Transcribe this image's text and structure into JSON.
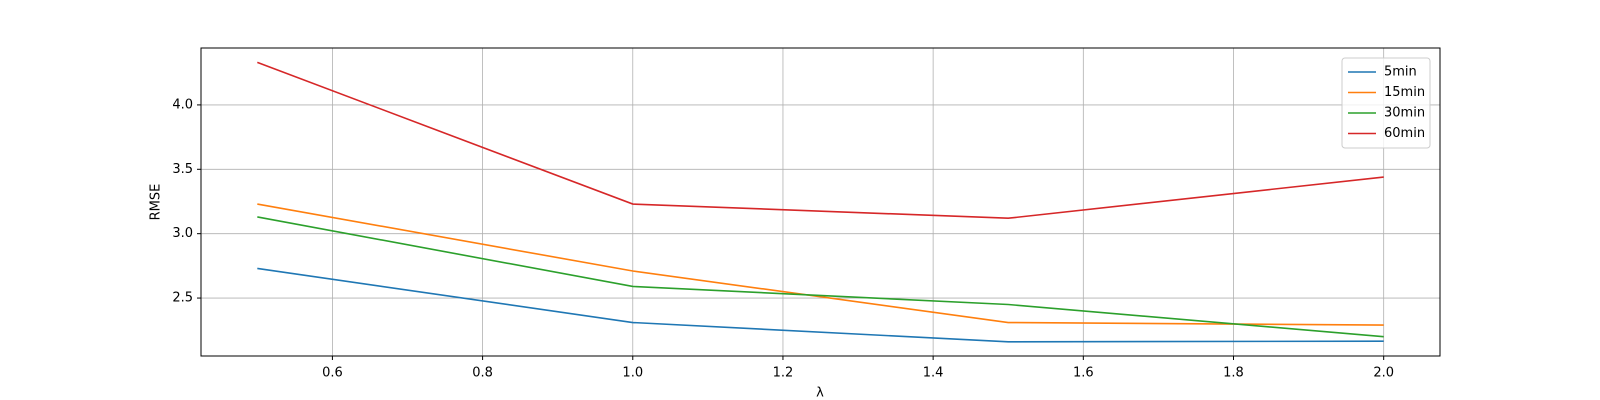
{
  "chart_data": {
    "type": "line",
    "xlabel": "λ",
    "ylabel": "RMSE",
    "x": [
      0.5,
      1.0,
      1.5,
      2.0
    ],
    "series": [
      {
        "name": "5min",
        "color": "#1f77b4",
        "values": [
          2.73,
          2.31,
          2.16,
          2.165
        ]
      },
      {
        "name": "15min",
        "color": "#ff7f0e",
        "values": [
          3.23,
          2.71,
          2.31,
          2.29
        ]
      },
      {
        "name": "30min",
        "color": "#2ca02c",
        "values": [
          3.13,
          2.59,
          2.45,
          2.2
        ]
      },
      {
        "name": "60min",
        "color": "#d62728",
        "values": [
          4.33,
          3.23,
          3.12,
          3.44
        ]
      }
    ],
    "xlim": [
      0.425,
      2.075
    ],
    "xticks": [
      0.6,
      0.8,
      1.0,
      1.2,
      1.4,
      1.6,
      1.8,
      2.0
    ],
    "ylim": [
      2.05,
      4.442
    ],
    "yticks": [
      2.5,
      3.0,
      3.5,
      4.0
    ],
    "grid": true,
    "legend": "upper right"
  }
}
